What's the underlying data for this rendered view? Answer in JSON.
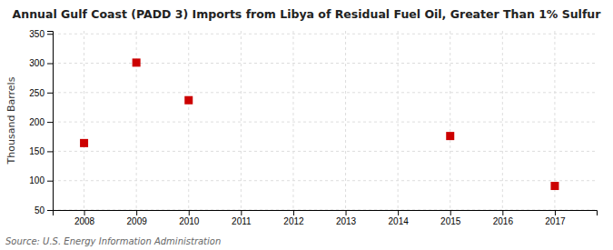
{
  "chart_data": {
    "type": "scatter",
    "title": "Annual Gulf Coast (PADD 3) Imports from Libya of Residual Fuel Oil, Greater Than 1% Sulfur",
    "ylabel": "Thousand Barrels",
    "annotation": "Source: U.S. Energy Information Administration",
    "x": [
      2008,
      2009,
      2010,
      2015,
      2017
    ],
    "values": [
      164,
      301,
      237,
      176,
      91
    ],
    "color": "#cc0000",
    "marker": "square",
    "xlim": [
      2007.4,
      2017.8
    ],
    "xticks": [
      2008,
      2009,
      2010,
      2011,
      2012,
      2013,
      2014,
      2015,
      2016,
      2017
    ],
    "ylim": [
      50,
      355
    ],
    "yticks": [
      50,
      100,
      150,
      200,
      250,
      300,
      350
    ],
    "grid": true
  }
}
